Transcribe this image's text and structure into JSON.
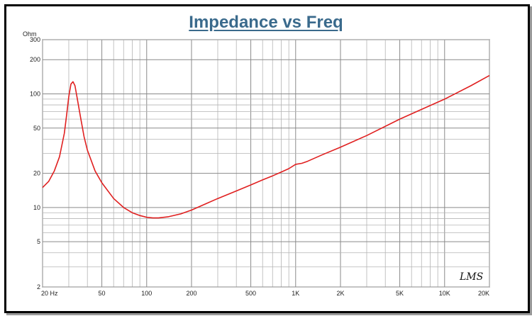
{
  "chart_data": {
    "type": "line",
    "title": "Impedance vs Freq",
    "ylabel": "Ohm",
    "xlabel": "",
    "x_scale": "log",
    "y_scale": "log",
    "xlim": [
      20,
      20000
    ],
    "ylim": [
      2,
      300
    ],
    "x_ticks": [
      {
        "value": 20,
        "label": "20  Hz"
      },
      {
        "value": 50,
        "label": "50"
      },
      {
        "value": 100,
        "label": "100"
      },
      {
        "value": 200,
        "label": "200"
      },
      {
        "value": 500,
        "label": "500"
      },
      {
        "value": 1000,
        "label": "1K"
      },
      {
        "value": 2000,
        "label": "2K"
      },
      {
        "value": 5000,
        "label": "5K"
      },
      {
        "value": 10000,
        "label": "10K"
      },
      {
        "value": 20000,
        "label": "20K"
      }
    ],
    "y_ticks": [
      {
        "value": 300,
        "label": "300"
      },
      {
        "value": 200,
        "label": "200"
      },
      {
        "value": 100,
        "label": "100"
      },
      {
        "value": 50,
        "label": "50"
      },
      {
        "value": 20,
        "label": "20"
      },
      {
        "value": 10,
        "label": "10"
      },
      {
        "value": 5,
        "label": "5"
      },
      {
        "value": 2,
        "label": "2"
      }
    ],
    "grid": true,
    "signature": "LMS",
    "series": [
      {
        "color": "#e02020",
        "x": [
          20,
          22,
          24,
          26,
          28,
          29,
          30,
          31,
          32,
          33,
          34,
          36,
          38,
          40,
          45,
          50,
          60,
          70,
          80,
          90,
          100,
          110,
          120,
          140,
          170,
          200,
          250,
          300,
          400,
          500,
          600,
          700,
          800,
          900,
          1000,
          1100,
          1200,
          1500,
          2000,
          3000,
          5000,
          7000,
          10000,
          15000,
          20000
        ],
        "y": [
          15,
          17,
          21,
          28,
          45,
          65,
          95,
          122,
          128,
          118,
          95,
          62,
          42,
          32,
          21,
          16.5,
          12,
          10,
          9,
          8.5,
          8.2,
          8.1,
          8.1,
          8.3,
          8.8,
          9.5,
          10.8,
          12,
          14,
          15.8,
          17.5,
          19,
          20.5,
          22,
          24,
          24.5,
          25.5,
          29,
          34,
          43,
          60,
          73,
          90,
          118,
          145
        ]
      }
    ]
  }
}
